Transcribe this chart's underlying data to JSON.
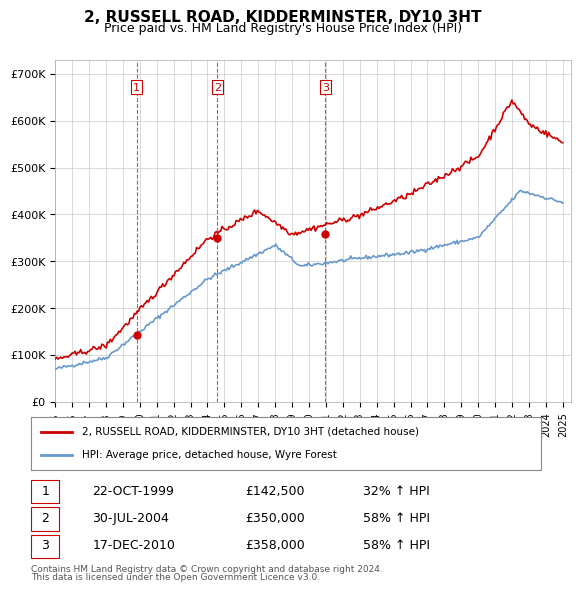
{
  "title": "2, RUSSELL ROAD, KIDDERMINSTER, DY10 3HT",
  "subtitle": "Price paid vs. HM Land Registry's House Price Index (HPI)",
  "ylabel_ticks": [
    "£0",
    "£100K",
    "£200K",
    "£300K",
    "£400K",
    "£500K",
    "£600K",
    "£700K"
  ],
  "ytick_values": [
    0,
    100000,
    200000,
    300000,
    400000,
    500000,
    600000,
    700000
  ],
  "ylim": [
    0,
    730000
  ],
  "sale_dates": [
    1999.81,
    2004.58,
    2010.96
  ],
  "sale_prices": [
    142500,
    350000,
    358000
  ],
  "sale_labels": [
    "1",
    "2",
    "3"
  ],
  "legend_line1": "2, RUSSELL ROAD, KIDDERMINSTER, DY10 3HT (detached house)",
  "legend_line2": "HPI: Average price, detached house, Wyre Forest",
  "table_rows": [
    {
      "num": "1",
      "date": "22-OCT-1999",
      "price": "£142,500",
      "hpi": "32% ↑ HPI"
    },
    {
      "num": "2",
      "date": "30-JUL-2004",
      "price": "£350,000",
      "hpi": "58% ↑ HPI"
    },
    {
      "num": "3",
      "date": "17-DEC-2010",
      "price": "£358,000",
      "hpi": "58% ↑ HPI"
    }
  ],
  "footnote1": "Contains HM Land Registry data © Crown copyright and database right 2024.",
  "footnote2": "This data is licensed under the Open Government Licence v3.0.",
  "red_color": "#cc0000",
  "blue_color": "#6699cc",
  "vline_color": "#cc0000",
  "grid_color": "#cccccc",
  "bg_color": "#ffffff",
  "plot_bg_color": "#ffffff"
}
